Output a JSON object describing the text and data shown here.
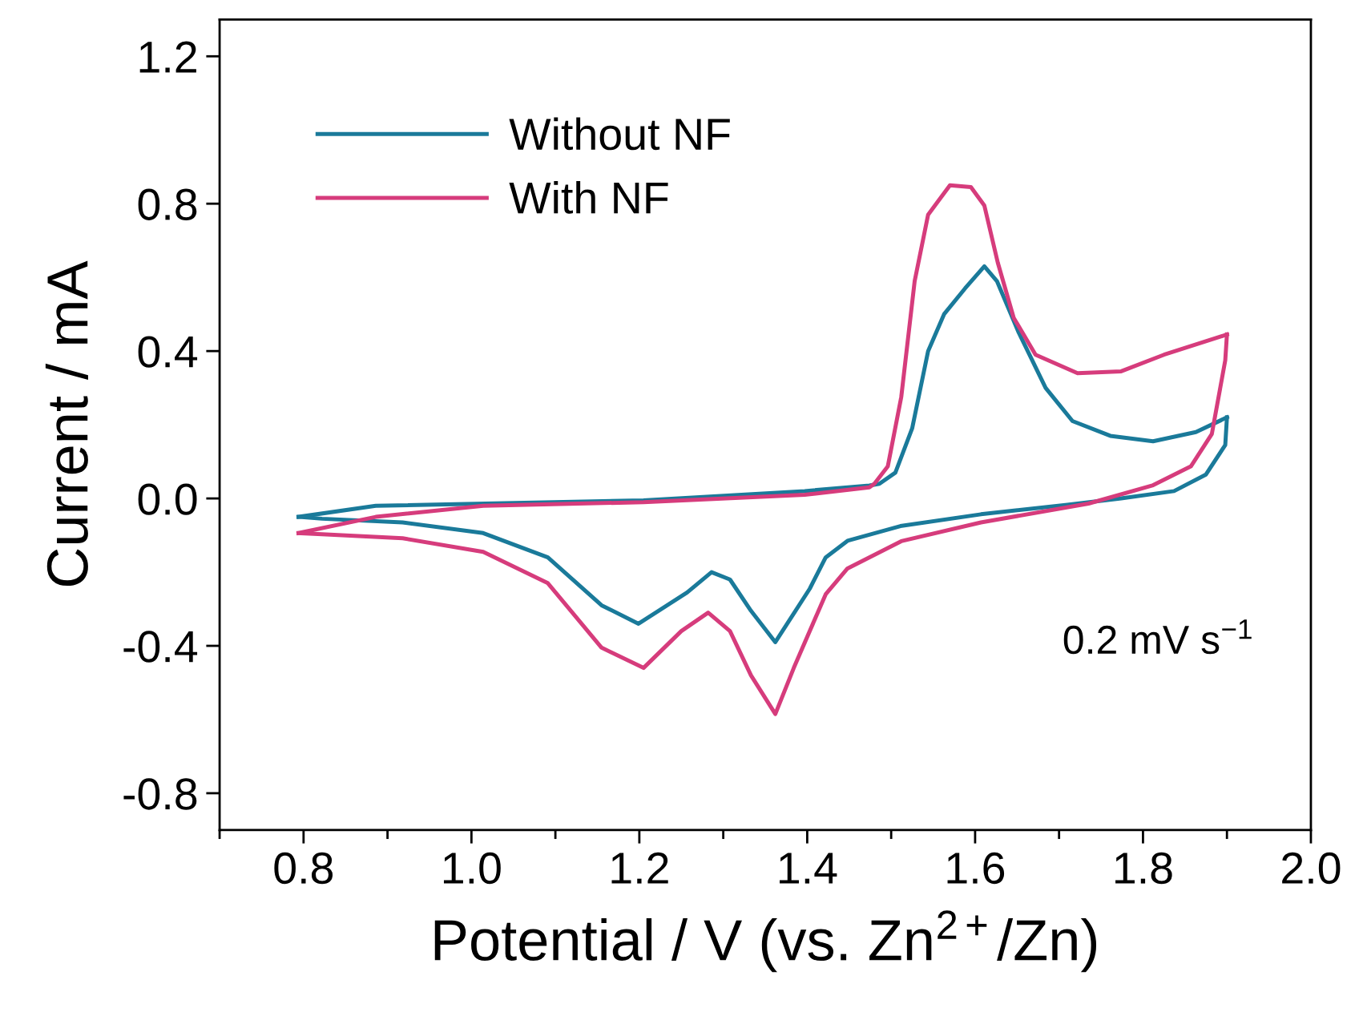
{
  "chart_data": {
    "type": "line",
    "xlabel": "Potential / V (vs. Zn$^{2+}$/Zn)",
    "ylabel": "Current / mA",
    "xlim": [
      0.7,
      2.0
    ],
    "ylim": [
      -0.9,
      1.3
    ],
    "xticks": [
      {
        "value": 0.8,
        "label": "0.8"
      },
      {
        "value": 1,
        "label": "1.0"
      },
      {
        "value": 1.2,
        "label": "1.2"
      },
      {
        "value": 1.4,
        "label": "1.4"
      },
      {
        "value": 1.6,
        "label": "1.6"
      },
      {
        "value": 1.8,
        "label": "1.8"
      },
      {
        "value": 2,
        "label": "2.0"
      }
    ],
    "yticks": [
      {
        "value": -0.8,
        "label": "-0.8"
      },
      {
        "value": -0.4,
        "label": "-0.4"
      },
      {
        "value": 0,
        "label": "0.0"
      },
      {
        "value": 0.4,
        "label": "0.4"
      },
      {
        "value": 0.8,
        "label": "0.8"
      },
      {
        "value": 1.2,
        "label": "1.2"
      }
    ],
    "grid": false,
    "legend": "top left",
    "marker": "none",
    "line_style": "solid",
    "annotations": [
      "0.2 mV s$^{−1}$"
    ],
    "series": [
      {
        "name": "Without NF",
        "color": "#1a7a9a",
        "x": [
          0.794,
          0.886,
          1.205,
          1.397,
          1.474,
          1.486,
          1.505,
          1.525,
          1.544,
          1.563,
          1.588,
          1.611,
          1.626,
          1.652,
          1.684,
          1.716,
          1.761,
          1.812,
          1.863,
          1.9
        ],
        "values": [
          -0.05,
          -0.02,
          -0.005,
          0.02,
          0.035,
          0.04,
          0.07,
          0.19,
          0.4,
          0.5,
          0.57,
          0.63,
          0.59,
          0.45,
          0.3,
          0.21,
          0.17,
          0.155,
          0.18,
          0.22
        ]
      },
      {
        "color": "#1a7a9a",
        "x": [
          1.9,
          1.898,
          1.875,
          1.837,
          1.774,
          1.71,
          1.607,
          1.511,
          1.448,
          1.422,
          1.403,
          1.362,
          1.333,
          1.308,
          1.286,
          1.257,
          1.199,
          1.155,
          1.091,
          1.014,
          0.918,
          0.822,
          0.794
        ],
        "values": [
          0.22,
          0.145,
          0.065,
          0.02,
          0.0,
          -0.017,
          -0.043,
          -0.075,
          -0.115,
          -0.16,
          -0.245,
          -0.39,
          -0.305,
          -0.22,
          -0.2,
          -0.255,
          -0.34,
          -0.29,
          -0.16,
          -0.094,
          -0.065,
          -0.055,
          -0.05
        ]
      },
      {
        "name": "With NF",
        "color": "#d63c7c",
        "x": [
          0.794,
          0.886,
          1.014,
          1.205,
          1.397,
          1.474,
          1.48,
          1.496,
          1.512,
          1.528,
          1.544,
          1.57,
          1.595,
          1.611,
          1.627,
          1.646,
          1.672,
          1.722,
          1.774,
          1.825,
          1.9
        ],
        "values": [
          -0.094,
          -0.05,
          -0.02,
          -0.01,
          0.01,
          0.03,
          0.04,
          0.087,
          0.275,
          0.59,
          0.77,
          0.85,
          0.845,
          0.795,
          0.64,
          0.49,
          0.39,
          0.34,
          0.345,
          0.39,
          0.445
        ]
      },
      {
        "color": "#d63c7c",
        "x": [
          1.9,
          1.898,
          1.882,
          1.857,
          1.812,
          1.735,
          1.607,
          1.512,
          1.448,
          1.422,
          1.384,
          1.362,
          1.333,
          1.308,
          1.282,
          1.25,
          1.205,
          1.155,
          1.091,
          1.014,
          0.918,
          0.822,
          0.794
        ],
        "values": [
          0.445,
          0.375,
          0.175,
          0.087,
          0.036,
          -0.014,
          -0.065,
          -0.116,
          -0.19,
          -0.26,
          -0.46,
          -0.585,
          -0.48,
          -0.36,
          -0.31,
          -0.36,
          -0.46,
          -0.405,
          -0.23,
          -0.145,
          -0.108,
          -0.097,
          -0.094
        ]
      }
    ]
  }
}
